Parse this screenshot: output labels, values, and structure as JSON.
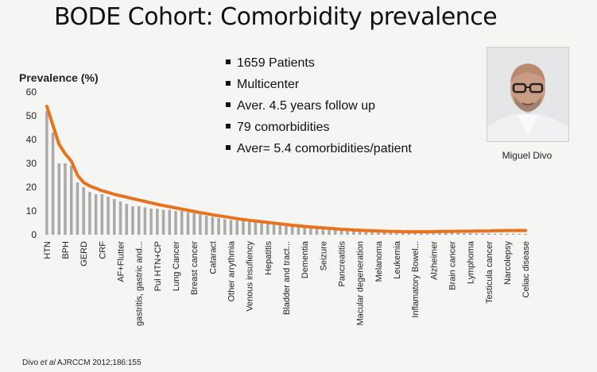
{
  "slide": {
    "title": "BODE Cohort: Comorbidity prevalence",
    "bullets": [
      "1659 Patients",
      "Multicenter",
      "Aver. 4.5 years follow up",
      "79 comorbidities",
      "Aver= 5.4 comorbidities/patient"
    ],
    "photo_caption": "Miguel Divo",
    "citation_author": "Divo ",
    "citation_etal": "et al",
    "citation_ref": " AJRCCM 2012;186:155"
  },
  "chart_data": {
    "type": "bar",
    "ylabel": "Prevalence (%)",
    "ylim": [
      0,
      60
    ],
    "yticks": [
      0,
      10,
      20,
      30,
      40,
      50,
      60
    ],
    "grid": false,
    "bar_color": "#a9a9a9",
    "curve_color": "#e8731e",
    "category_labels": [
      "HTN",
      "BPH",
      "GERD",
      "CRF",
      "AF+Flutter",
      "gastritis, gastric and...",
      "Pul HTN+CP",
      "Lung Cancer",
      "Breast cancer",
      "Cataract",
      "Other arrythmia",
      "Venous insufiency",
      "Hepatitis",
      "Bladder and tract...",
      "Dementia",
      "Seizure",
      "Pancreatitis",
      "Macular degeneration",
      "Melanoma",
      "Leukemia",
      "Inflamatory Bowel...",
      "Alzheimer",
      "Brain cancer",
      "Lymphoma",
      "Testicula cancer",
      "Narcolepsy",
      "Celiac disease"
    ],
    "label_every": 3,
    "values": [
      52,
      43,
      30,
      30,
      29,
      22,
      20,
      18,
      17,
      17,
      16,
      15,
      14,
      13,
      12,
      12,
      11.5,
      11,
      11,
      10.5,
      10.5,
      10,
      10,
      9.5,
      9,
      8.5,
      8,
      7.5,
      7,
      6.5,
      6.2,
      6,
      5.8,
      5.6,
      5.4,
      5.2,
      5,
      4.8,
      4.6,
      4.4,
      4.2,
      4,
      3.8,
      3.6,
      3.4,
      3.2,
      3,
      2.8,
      2.6,
      2.4,
      2.2,
      2,
      2,
      1.8,
      1.7,
      1.6,
      1.5,
      1.4,
      1.3,
      1.2,
      1.1,
      1,
      1,
      1,
      0.9,
      0.9,
      0.8,
      0.8,
      0.7,
      0.7,
      0.6,
      0.6,
      0.6,
      0.5,
      0.5,
      0.5,
      0.5,
      0.4,
      0.4
    ],
    "trend": [
      54,
      46,
      38,
      34,
      31,
      25,
      22,
      20.5,
      19.5,
      18.5,
      17.8,
      17,
      16.4,
      15.8,
      15.2,
      14.6,
      14,
      13.4,
      12.8,
      12.3,
      11.8,
      11.3,
      10.8,
      10.3,
      9.8,
      9.3,
      8.9,
      8.4,
      8,
      7.6,
      7.2,
      6.8,
      6.4,
      6.1,
      5.8,
      5.5,
      5.2,
      4.9,
      4.6,
      4.3,
      4,
      3.8,
      3.5,
      3.3,
      3.1,
      2.9,
      2.7,
      2.5,
      2.3,
      2.2,
      2,
      1.9,
      1.8,
      1.7,
      1.6,
      1.5,
      1.4,
      1.4,
      1.3,
      1.3,
      1.3,
      1.3,
      1.3,
      1.3,
      1.4,
      1.4,
      1.4,
      1.5,
      1.5,
      1.5,
      1.6,
      1.6,
      1.6,
      1.7,
      1.7,
      1.8,
      1.8,
      1.8,
      1.8
    ]
  }
}
